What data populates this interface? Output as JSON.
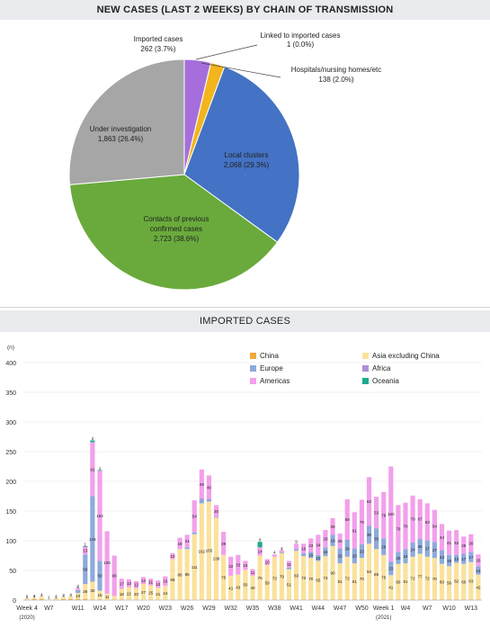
{
  "chart_data": [
    {
      "type": "pie",
      "title": "NEW CASES (LAST 2 WEEKS) BY CHAIN OF TRANSMISSION",
      "slices": [
        {
          "name": "Imported cases",
          "value": 262,
          "label": "262 (3.7%)",
          "color": "#a56edc"
        },
        {
          "name": "Linked to imported cases",
          "value": 1,
          "label": "1 (0.0%)",
          "color": "#8faa3c"
        },
        {
          "name": "Hospitals/nursing homes/etc",
          "value": 138,
          "label": "138 (2.0%)",
          "color": "#f2b51c"
        },
        {
          "name": "Local clusters",
          "value": 2068,
          "label": "2,068 (29.3%)",
          "color": "#4472c4"
        },
        {
          "name": "Contacts of previous confirmed cases",
          "value": 2723,
          "label": "2,723 (38.6%)",
          "color": "#6aaa3c"
        },
        {
          "name": "Under investigation",
          "value": 1863,
          "label": "1,863 (26.4%)",
          "color": "#a6a6a6"
        }
      ],
      "display_names": {
        "imported": "Imported cases",
        "linked": "Linked to imported cases",
        "hospitals": "Hospitals/nursing homes/etc",
        "local": "Local clusters",
        "contacts_1": "Contacts of previous",
        "contacts_2": "confirmed cases",
        "under": "Under investigation"
      }
    },
    {
      "type": "bar",
      "stacked": true,
      "title": "IMPORTED CASES",
      "ylabel": "(n)",
      "ylim": [
        0,
        400
      ],
      "yticks": [
        0,
        50,
        100,
        150,
        200,
        250,
        300,
        350,
        400
      ],
      "x_tick_labels": [
        {
          "index": 0,
          "label": "Week 4"
        },
        {
          "index": 3,
          "label": "W7"
        },
        {
          "index": 7,
          "label": "W11"
        },
        {
          "index": 10,
          "label": "W14"
        },
        {
          "index": 13,
          "label": "W17"
        },
        {
          "index": 16,
          "label": "W20"
        },
        {
          "index": 19,
          "label": "W23"
        },
        {
          "index": 22,
          "label": "W26"
        },
        {
          "index": 25,
          "label": "W29"
        },
        {
          "index": 28,
          "label": "W32"
        },
        {
          "index": 31,
          "label": "W35"
        },
        {
          "index": 34,
          "label": "W38"
        },
        {
          "index": 37,
          "label": "W41"
        },
        {
          "index": 40,
          "label": "W44"
        },
        {
          "index": 43,
          "label": "W47"
        },
        {
          "index": 46,
          "label": "W50"
        },
        {
          "index": 49,
          "label": "Week 1"
        },
        {
          "index": 52,
          "label": "W4"
        },
        {
          "index": 55,
          "label": "W7"
        },
        {
          "index": 58,
          "label": "W10"
        },
        {
          "index": 61,
          "label": "W13"
        }
      ],
      "year_labels": [
        {
          "index": 0,
          "label": "(2020)"
        },
        {
          "index": 49,
          "label": "(2021)"
        }
      ],
      "legend_position": "top",
      "series": [
        {
          "name": "China",
          "color": "#f0a93a",
          "values": [
            1,
            2,
            2,
            0,
            1,
            2,
            2,
            2,
            2,
            1,
            1,
            0,
            1,
            1,
            0,
            0,
            0,
            0,
            0,
            0,
            0,
            0,
            1,
            0,
            1,
            1,
            1,
            1,
            0,
            0,
            1,
            1,
            0,
            0,
            0,
            0,
            1,
            0,
            1,
            1,
            1,
            1,
            1,
            1,
            1,
            1,
            1,
            1,
            1,
            1,
            1,
            1,
            1,
            1,
            1,
            1,
            1,
            1,
            1,
            1,
            1,
            1,
            1
          ]
        },
        {
          "name": "Asia excluding China",
          "color": "#fae29c",
          "values": [
            2,
            2,
            4,
            1,
            2,
            3,
            4,
            10,
            25,
            30,
            15,
            11,
            6,
            18,
            22,
            20,
            27,
            25,
            21,
            24,
            69,
            86,
            85,
            111,
            162,
            165,
            138,
            75,
            41,
            43,
            50,
            40,
            75,
            59,
            73,
            79,
            51,
            83,
            73,
            70,
            65,
            73,
            90,
            61,
            72,
            61,
            70,
            94,
            85,
            75,
            41,
            60,
            61,
            72,
            77,
            72,
            70,
            60,
            56,
            62,
            60,
            63,
            42
          ]
        },
        {
          "name": "Europe",
          "color": "#8eaadb",
          "values": [
            0,
            0,
            0,
            0,
            0,
            0,
            0,
            5,
            50,
            144,
            50,
            0,
            0,
            0,
            0,
            0,
            0,
            0,
            0,
            0,
            0,
            0,
            3,
            3,
            6,
            3,
            1,
            0,
            0,
            0,
            0,
            0,
            0,
            0,
            0,
            1,
            3,
            3,
            5,
            10,
            10,
            15,
            19,
            25,
            28,
            25,
            23,
            30,
            35,
            28,
            23,
            20,
            24,
            24,
            25,
            27,
            27,
            23,
            19,
            13,
            17,
            17,
            14
          ]
        },
        {
          "name": "Africa",
          "color": "#a992d6",
          "values": [
            0,
            0,
            0,
            0,
            0,
            0,
            0,
            0,
            0,
            0,
            0,
            0,
            0,
            0,
            0,
            0,
            0,
            0,
            0,
            0,
            0,
            0,
            0,
            0,
            2,
            1,
            0,
            0,
            0,
            0,
            0,
            0,
            0,
            0,
            0,
            0,
            0,
            0,
            0,
            0,
            0,
            0,
            0,
            0,
            1,
            0,
            0,
            0,
            0,
            0,
            0,
            0,
            0,
            0,
            0,
            0,
            0,
            0,
            0,
            0,
            0,
            0,
            0
          ]
        },
        {
          "name": "Americas",
          "color": "#f2a0ea",
          "values": [
            0,
            0,
            0,
            0,
            0,
            0,
            0,
            3,
            13,
            91,
            152,
            105,
            68,
            17,
            13,
            12,
            12,
            11,
            12,
            16,
            10,
            19,
            21,
            54,
            49,
            40,
            20,
            39,
            32,
            33,
            15,
            11,
            14,
            10,
            4,
            4,
            11,
            9,
            16,
            23,
            34,
            29,
            28,
            25,
            68,
            61,
            75,
            82,
            53,
            78,
            160,
            79,
            78,
            79,
            67,
            63,
            54,
            44,
            41,
            42,
            29,
            30,
            20
          ]
        },
        {
          "name": "Oceania",
          "color": "#1fa98a",
          "values": [
            0,
            0,
            0,
            0,
            0,
            0,
            0,
            0,
            1,
            3,
            1,
            0,
            0,
            0,
            0,
            0,
            0,
            0,
            0,
            0,
            0,
            0,
            0,
            0,
            0,
            0,
            0,
            0,
            0,
            0,
            0,
            0,
            9,
            0,
            0,
            0,
            0,
            0,
            0,
            0,
            0,
            0,
            0,
            0,
            0,
            0,
            0,
            0,
            0,
            0,
            0,
            0,
            0,
            0,
            0,
            0,
            0,
            0,
            0,
            0,
            0,
            0,
            0
          ]
        }
      ]
    }
  ]
}
